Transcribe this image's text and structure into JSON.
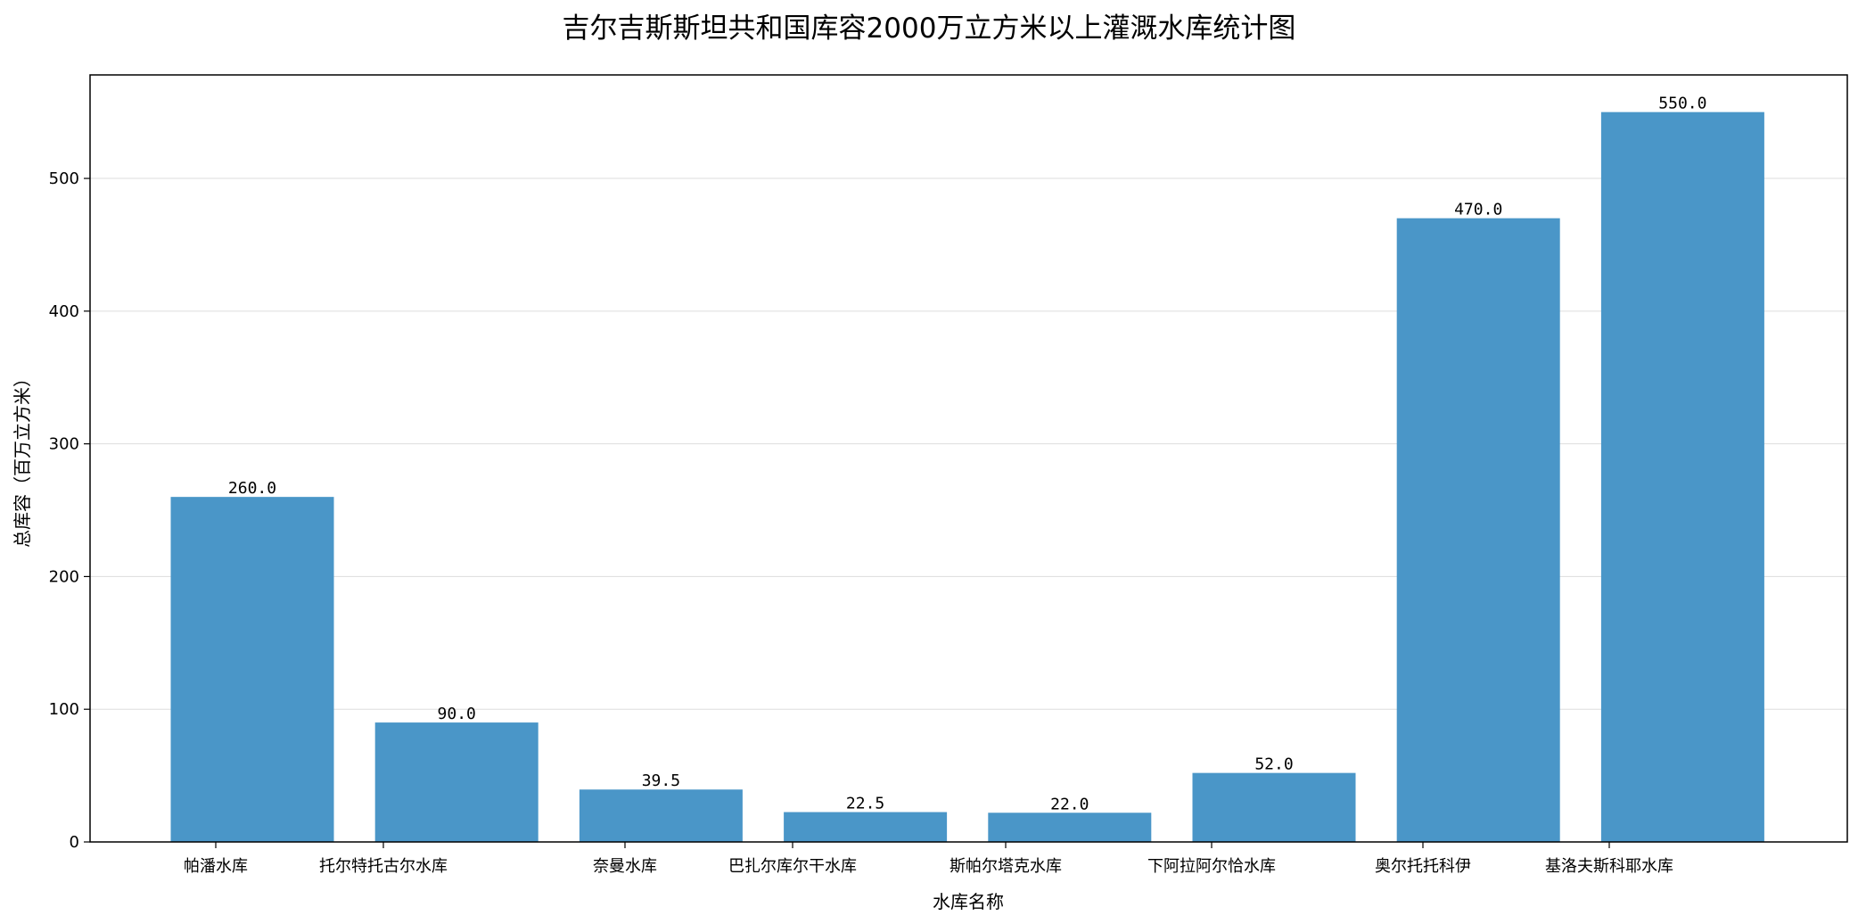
{
  "chart_data": {
    "type": "bar",
    "title": "吉尔吉斯斯坦共和国库容2000万立方米以上灌溉水库统计图",
    "xlabel": "水库名称",
    "ylabel": "总库容（百万立方米）",
    "categories": [
      "帕潘水库",
      "托尔特托古尔水库",
      "奈曼水库",
      "巴扎尔库尔干水库",
      "斯帕尔塔克水库",
      "下阿拉阿尔恰水库",
      "奥尔托托科伊",
      "基洛夫斯科耶水库"
    ],
    "values": [
      260.0,
      90.0,
      39.5,
      22.5,
      22.0,
      52.0,
      470.0,
      550.0
    ],
    "data_labels": [
      "260.0",
      "90.0",
      "39.5",
      "22.5",
      "22.0",
      "52.0",
      "470.0",
      "550.0"
    ],
    "ylim": [
      0,
      578
    ],
    "yticks": [
      0,
      100,
      200,
      300,
      400,
      500
    ],
    "grid": "horizontal",
    "legend": "none",
    "bar_color": "#4a96c8"
  }
}
